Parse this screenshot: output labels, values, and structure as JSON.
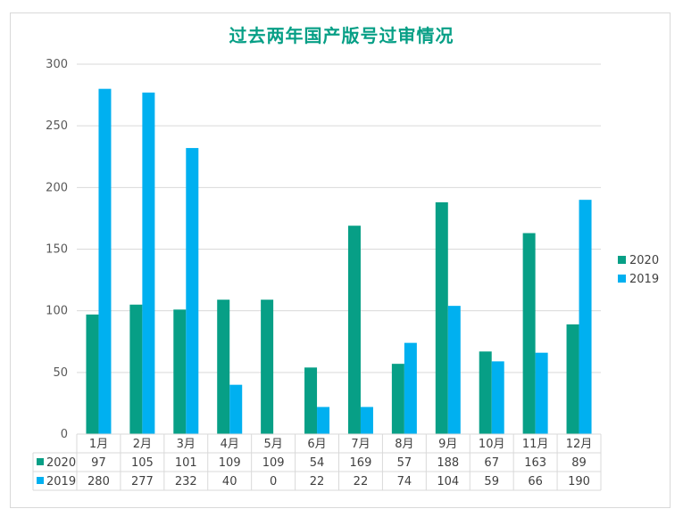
{
  "chart_data": {
    "type": "bar",
    "title": "过去两年国产版号过审情况",
    "categories": [
      "1月",
      "2月",
      "3月",
      "4月",
      "5月",
      "6月",
      "7月",
      "8月",
      "9月",
      "10月",
      "11月",
      "12月"
    ],
    "series": [
      {
        "name": "2020",
        "color": "#079f86",
        "values": [
          97,
          105,
          101,
          109,
          109,
          54,
          169,
          57,
          188,
          67,
          163,
          89
        ]
      },
      {
        "name": "2019",
        "color": "#00b0f0",
        "values": [
          280,
          277,
          232,
          40,
          0,
          22,
          22,
          74,
          104,
          59,
          66,
          190
        ]
      }
    ],
    "ylim": [
      0,
      300
    ],
    "yticks": [
      0,
      50,
      100,
      150,
      200,
      250,
      300
    ],
    "grid": true,
    "legend": "right",
    "data_table": true,
    "title_color": "#079f86"
  }
}
